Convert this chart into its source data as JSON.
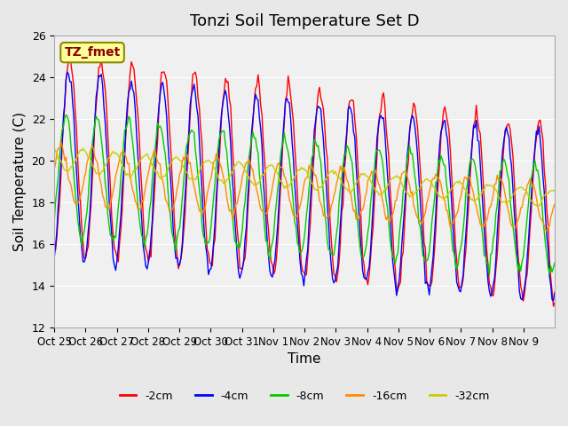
{
  "title": "Tonzi Soil Temperature Set D",
  "ylabel": "Soil Temperature (C)",
  "xlabel": "Time",
  "annotation_label": "TZ_fmet",
  "annotation_color": "#8B0000",
  "annotation_bg": "#FFFF99",
  "annotation_border": "#8B8B00",
  "ylim": [
    12,
    26
  ],
  "yticks": [
    12,
    14,
    16,
    18,
    20,
    22,
    24,
    26
  ],
  "xtick_labels": [
    "Oct 25",
    "Oct 26",
    "Oct 27",
    "Oct 28",
    "Oct 29",
    "Oct 30",
    "Oct 31",
    "Nov 1",
    "Nov 2",
    "Nov 3",
    "Nov 4",
    "Nov 5",
    "Nov 6",
    "Nov 7",
    "Nov 8",
    "Nov 9"
  ],
  "series_colors": [
    "#FF0000",
    "#0000FF",
    "#00CC00",
    "#FF8C00",
    "#CCCC00"
  ],
  "series_labels": [
    "-2cm",
    "-4cm",
    "-8cm",
    "-16cm",
    "-32cm"
  ],
  "bg_color": "#E8E8E8",
  "plot_bg_color": "#F0F0F0",
  "grid_color": "#FFFFFF",
  "title_fontsize": 13,
  "axis_label_fontsize": 11,
  "tick_fontsize": 9
}
